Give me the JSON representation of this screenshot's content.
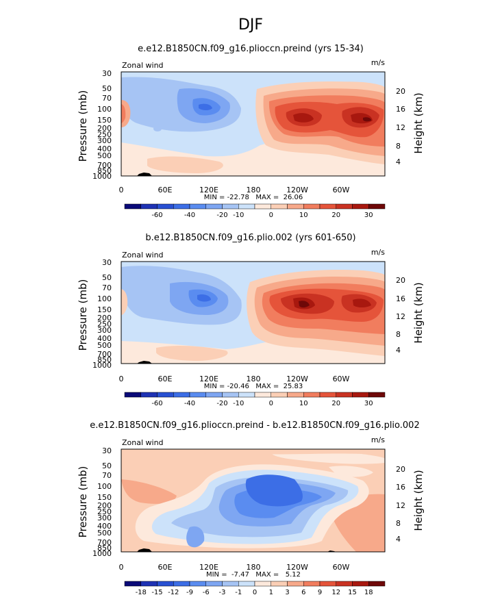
{
  "figure": {
    "title": "DJF"
  },
  "chart_data": [
    {
      "type": "contour",
      "title": "e.e12.B1850CN.f09_g16.plioccn.preind (yrs 15-34)",
      "left_label": "Zonal wind",
      "units": "m/s",
      "ylabel": "Pressure (mb)",
      "ylabel_right": "Height (km)",
      "x_ticks": [
        "0",
        "60E",
        "120E",
        "180",
        "120W",
        "60W"
      ],
      "y_ticks": [
        "30",
        "50",
        "70",
        "100",
        "150",
        "200",
        "250",
        "300",
        "400",
        "500",
        "700",
        "850",
        "1000"
      ],
      "height_ticks": [
        "20",
        "16",
        "12",
        "8",
        "4"
      ],
      "stats": "MIN = -22.78   MAX =  26.06",
      "min": -22.78,
      "max": 26.06,
      "colorbar": {
        "levels": [
          -70,
          -60,
          -50,
          -40,
          -30,
          -20,
          -10,
          -5,
          0,
          5,
          10,
          15,
          20,
          25,
          30
        ],
        "labels": [
          "-60",
          "-40",
          "-20",
          "-10",
          "0",
          "10",
          "20",
          "30"
        ],
        "colors": [
          "#0a0a78",
          "#1e32b4",
          "#2850d2",
          "#3c6ee6",
          "#5a8cf0",
          "#7ea6f2",
          "#a6c4f4",
          "#cce2fa",
          "#fde9dc",
          "#fbcfb6",
          "#f7a98a",
          "#f17d5e",
          "#e5543a",
          "#c93222",
          "#a8180f",
          "#6e0808"
        ]
      }
    },
    {
      "type": "contour",
      "title": "b.e12.B1850CN.f09_g16.plio.002 (yrs 601-650)",
      "left_label": "Zonal wind",
      "units": "m/s",
      "ylabel": "Pressure (mb)",
      "ylabel_right": "Height (km)",
      "x_ticks": [
        "0",
        "60E",
        "120E",
        "180",
        "120W",
        "60W"
      ],
      "y_ticks": [
        "30",
        "50",
        "70",
        "100",
        "150",
        "200",
        "250",
        "300",
        "400",
        "500",
        "700",
        "850",
        "1000"
      ],
      "height_ticks": [
        "20",
        "16",
        "12",
        "8",
        "4"
      ],
      "stats": "MIN = -20.46   MAX =  25.83",
      "min": -20.46,
      "max": 25.83,
      "colorbar": {
        "levels": [
          -70,
          -60,
          -50,
          -40,
          -30,
          -20,
          -10,
          -5,
          0,
          5,
          10,
          15,
          20,
          25,
          30
        ],
        "labels": [
          "-60",
          "-40",
          "-20",
          "-10",
          "0",
          "10",
          "20",
          "30"
        ],
        "colors": [
          "#0a0a78",
          "#1e32b4",
          "#2850d2",
          "#3c6ee6",
          "#5a8cf0",
          "#7ea6f2",
          "#a6c4f4",
          "#cce2fa",
          "#fde9dc",
          "#fbcfb6",
          "#f7a98a",
          "#f17d5e",
          "#e5543a",
          "#c93222",
          "#a8180f",
          "#6e0808"
        ]
      }
    },
    {
      "type": "contour",
      "title": "e.e12.B1850CN.f09_g16.plioccn.preind - b.e12.B1850CN.f09_g16.plio.002",
      "left_label": "Zonal wind",
      "units": "m/s",
      "ylabel": "Pressure (mb)",
      "ylabel_right": "Height (km)",
      "x_ticks": [
        "0",
        "60E",
        "120E",
        "180",
        "120W",
        "60W"
      ],
      "y_ticks": [
        "30",
        "50",
        "70",
        "100",
        "150",
        "200",
        "250",
        "300",
        "400",
        "500",
        "700",
        "850",
        "1000"
      ],
      "height_ticks": [
        "20",
        "16",
        "12",
        "8",
        "4"
      ],
      "stats": "MIN =  -7.47   MAX =   5.12",
      "min": -7.47,
      "max": 5.12,
      "colorbar": {
        "levels": [
          -18,
          -15,
          -12,
          -9,
          -6,
          -3,
          -1,
          0,
          1,
          3,
          6,
          9,
          12,
          15,
          18
        ],
        "labels": [
          "-18",
          "-15",
          "-12",
          "-9",
          "-6",
          "-3",
          "-1",
          "0",
          "1",
          "3",
          "6",
          "9",
          "12",
          "15",
          "18"
        ],
        "colors": [
          "#0a0a78",
          "#1e32b4",
          "#2850d2",
          "#3c6ee6",
          "#5a8cf0",
          "#7ea6f2",
          "#a6c4f4",
          "#cce2fa",
          "#fde9dc",
          "#fbcfb6",
          "#f7a98a",
          "#f17d5e",
          "#e5543a",
          "#c93222",
          "#a8180f",
          "#6e0808"
        ]
      }
    }
  ]
}
